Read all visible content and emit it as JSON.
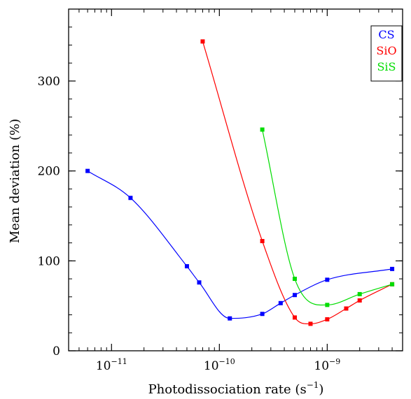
{
  "chart_data": {
    "type": "line",
    "xlabel": "Photodissociation rate (s",
    "xlabel_superscript": "−1",
    "xlabel_suffix": ")",
    "ylabel": "Mean deviation (%)",
    "xscale": "log",
    "xlim": [
      4e-12,
      5e-09
    ],
    "ylim": [
      0,
      380
    ],
    "xticks": [
      {
        "value": 1e-11,
        "base": "10",
        "exp": "−11"
      },
      {
        "value": 1e-10,
        "base": "10",
        "exp": "−10"
      },
      {
        "value": 1e-09,
        "base": "10",
        "exp": "−9"
      }
    ],
    "yticks": [
      0,
      100,
      200,
      300
    ],
    "legend_position": "top-right",
    "series": [
      {
        "name": "CS",
        "color": "#0000ff",
        "x": [
          6e-12,
          1.5e-11,
          5e-11,
          6.5e-11,
          1.25e-10,
          2.5e-10,
          3.7e-10,
          5e-10,
          1e-09,
          4e-09
        ],
        "y": [
          200,
          170,
          94,
          76,
          36,
          41,
          53,
          62,
          79,
          91
        ]
      },
      {
        "name": "SiO",
        "color": "#ff0000",
        "x": [
          7e-11,
          2.5e-10,
          5e-10,
          7e-10,
          1e-09,
          1.5e-09,
          2e-09,
          4e-09
        ],
        "y": [
          344,
          122,
          37,
          30,
          35,
          47,
          56,
          74
        ]
      },
      {
        "name": "SiS",
        "color": "#00dd00",
        "x": [
          2.5e-10,
          5e-10,
          1e-09,
          2e-09,
          4e-09
        ],
        "y": [
          246,
          80,
          51,
          63,
          74
        ]
      }
    ]
  }
}
